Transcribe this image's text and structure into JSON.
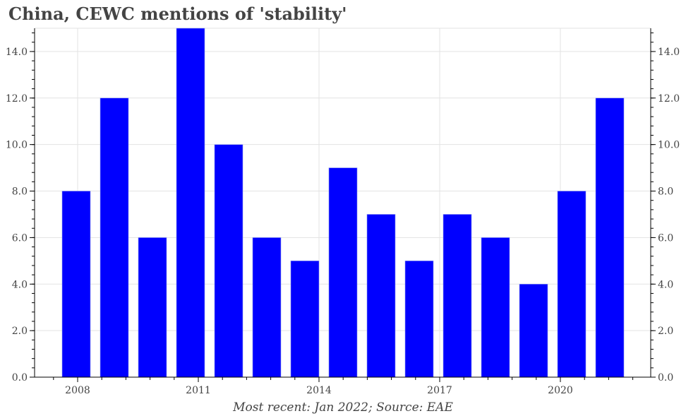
{
  "chart_data": {
    "type": "bar",
    "title": "China, CEWC mentions of 'stability'",
    "footnote": "Most recent: Jan 2022; Source: EAE",
    "categories": [
      "2008",
      "2009",
      "2010",
      "2011",
      "2012",
      "2013",
      "2014",
      "2015",
      "2016",
      "2017",
      "2018",
      "2019",
      "2020",
      "2021",
      "2022"
    ],
    "values": [
      8,
      12,
      6,
      15,
      10,
      6,
      5,
      9,
      7,
      5,
      7,
      6,
      4,
      8,
      12
    ],
    "ylim": [
      0,
      15
    ],
    "yticks": [
      0,
      2,
      4,
      6,
      8,
      10,
      12,
      14
    ],
    "ytick_labels": [
      "0.0",
      "2.0",
      "4.0",
      "6.0",
      "8.0",
      "10.0",
      "12.0",
      "14.0"
    ],
    "xticks": [
      "2008",
      "2011",
      "2014",
      "2017",
      "2020"
    ],
    "bar_color": "#0000ff",
    "grid": true,
    "xlabel": "",
    "ylabel": ""
  }
}
